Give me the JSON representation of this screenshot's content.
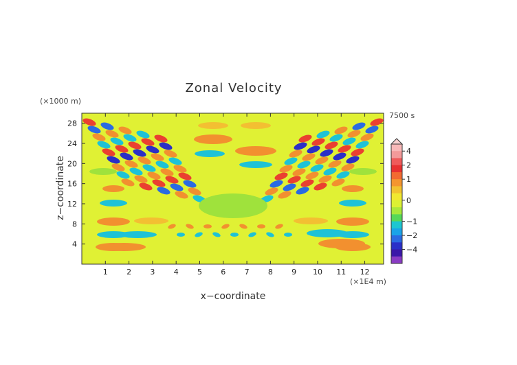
{
  "chart_data": {
    "type": "heatmap",
    "title": "Zonal Velocity",
    "xlabel": "x−coordinate",
    "ylabel": "z−coordinate",
    "x_unit": "(×1E4 m)",
    "y_unit": "(×1000 m)",
    "time_label": "7500 s",
    "x_ticks": [
      "1",
      "2",
      "3",
      "4",
      "5",
      "6",
      "7",
      "8",
      "9",
      "10",
      "11",
      "12"
    ],
    "y_ticks": [
      "4",
      "8",
      "12",
      "16",
      "20",
      "24",
      "28"
    ],
    "xlim": [
      0,
      12.8
    ],
    "ylim": [
      0,
      30
    ],
    "colorbar": {
      "ticks": [
        "4",
        "2",
        "1",
        "0",
        "−1",
        "−2",
        "−4"
      ],
      "levels": [
        5,
        4,
        3,
        2,
        1.5,
        1,
        0.5,
        0.25,
        0,
        -0.25,
        -0.5,
        -1,
        -1.5,
        -2,
        -3,
        -4,
        -5
      ],
      "colors": [
        "#f9b8b8",
        "#f39a9a",
        "#ef5a5a",
        "#e83030",
        "#f26a30",
        "#f4952f",
        "#f2c230",
        "#f1e830",
        "#dcf033",
        "#a9e83a",
        "#56d858",
        "#1ec6d1",
        "#1aa3e8",
        "#2a6be2",
        "#2a2fc8",
        "#3a18a8",
        "#8a3cc4"
      ]
    }
  }
}
